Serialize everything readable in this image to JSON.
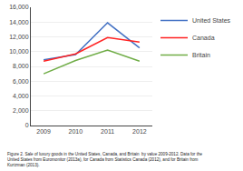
{
  "chart_data": {
    "type": "line",
    "x": [
      2009,
      2010,
      2011,
      2012
    ],
    "series": [
      {
        "name": "United States",
        "color": "#4472C4",
        "values": [
          8900,
          9600,
          13900,
          10500
        ]
      },
      {
        "name": "Canada",
        "color": "#FF2222",
        "values": [
          8700,
          9700,
          11900,
          11300
        ]
      },
      {
        "name": "Britain",
        "color": "#70AD47",
        "values": [
          7000,
          8800,
          10200,
          8700
        ]
      }
    ],
    "xlim": [
      2008.6,
      2012.4
    ],
    "xticks": [
      2009,
      2010,
      2011,
      2012
    ],
    "ylim": [
      0,
      16000
    ],
    "yticks": [
      0,
      {
        "value": 2000,
        "label": "2,000"
      },
      {
        "value": 4000,
        "label": "4,000"
      },
      {
        "value": 6000,
        "label": "6,000"
      },
      {
        "value": 8000,
        "label": "8,000"
      },
      {
        "value": 10000,
        "label": "10,000"
      },
      {
        "value": 12000,
        "label": "12,000"
      },
      {
        "value": 14000,
        "label": "14,000"
      },
      {
        "value": 16000,
        "label": "16,000"
      }
    ],
    "grid": true,
    "legend": "right",
    "caption": "Figure 2. Sale of luxury goods in the United States, Canada, and Britain  by value 2009-2012. Data for the\nUnited States from Euromonitor (2013a), for Canada from Statistics Canada (2012), and for Britain from\nKurtzman (2013)."
  }
}
